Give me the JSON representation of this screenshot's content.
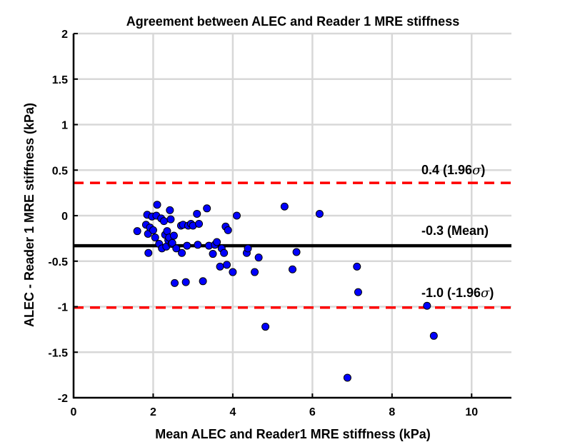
{
  "chart_data": {
    "type": "scatter",
    "title": "Agreement between ALEC and Reader 1 MRE stiffness",
    "xlabel": "Mean ALEC and Reader1 MRE stiffness (kPa)",
    "ylabel": "ALEC - Reader 1 MRE stiffness (kPa)",
    "xlim": [
      0,
      11
    ],
    "ylim": [
      -2,
      2
    ],
    "grid": true,
    "x_ticks": [
      "0",
      "2",
      "4",
      "6",
      "8",
      "10"
    ],
    "y_ticks": [
      "2",
      "1.5",
      "1",
      "0.5",
      "0",
      "-0.5",
      "-1",
      "-1.5",
      "-2"
    ],
    "x_tick_values": [
      0,
      2,
      4,
      6,
      8,
      10
    ],
    "y_tick_values": [
      2,
      1.5,
      1,
      0.5,
      0,
      -0.5,
      -1,
      -1.5,
      -2
    ],
    "point_color": "#0000ff",
    "mean_line": {
      "value": -0.33,
      "color": "#000000",
      "label": "-0.3 (Mean)"
    },
    "upper_limit": {
      "value": 0.36,
      "color": "#ff0000",
      "label_prefix": "0.4 (1.96",
      "label_sigma": "σ",
      "label_suffix": ")"
    },
    "lower_limit": {
      "value": -1.01,
      "color": "#ff0000",
      "label_prefix": "-1.0 (-1.96",
      "label_sigma": "σ",
      "label_suffix": ")"
    },
    "points": [
      {
        "x": 1.6,
        "y": -0.17
      },
      {
        "x": 1.82,
        "y": -0.1
      },
      {
        "x": 1.85,
        "y": 0.01
      },
      {
        "x": 1.87,
        "y": -0.2
      },
      {
        "x": 1.88,
        "y": -0.41
      },
      {
        "x": 1.92,
        "y": -0.13
      },
      {
        "x": 1.97,
        "y": -0.01
      },
      {
        "x": 2.0,
        "y": -0.16
      },
      {
        "x": 2.05,
        "y": -0.24
      },
      {
        "x": 2.08,
        "y": 0.0
      },
      {
        "x": 2.1,
        "y": 0.12
      },
      {
        "x": 2.15,
        "y": -0.31
      },
      {
        "x": 2.2,
        "y": -0.03
      },
      {
        "x": 2.22,
        "y": -0.36
      },
      {
        "x": 2.27,
        "y": -0.06
      },
      {
        "x": 2.3,
        "y": -0.21
      },
      {
        "x": 2.33,
        "y": -0.34
      },
      {
        "x": 2.35,
        "y": -0.17
      },
      {
        "x": 2.38,
        "y": -0.27
      },
      {
        "x": 2.4,
        "y": -0.24
      },
      {
        "x": 2.42,
        "y": 0.06
      },
      {
        "x": 2.44,
        "y": -0.04
      },
      {
        "x": 2.46,
        "y": -0.31
      },
      {
        "x": 2.48,
        "y": -0.3
      },
      {
        "x": 2.52,
        "y": -0.22
      },
      {
        "x": 2.54,
        "y": -0.74
      },
      {
        "x": 2.58,
        "y": -0.36
      },
      {
        "x": 2.7,
        "y": -0.11
      },
      {
        "x": 2.72,
        "y": -0.41
      },
      {
        "x": 2.75,
        "y": -0.1
      },
      {
        "x": 2.82,
        "y": -0.73
      },
      {
        "x": 2.85,
        "y": -0.33
      },
      {
        "x": 2.88,
        "y": -0.11
      },
      {
        "x": 2.95,
        "y": -0.09
      },
      {
        "x": 3.0,
        "y": -0.11
      },
      {
        "x": 3.1,
        "y": 0.02
      },
      {
        "x": 3.12,
        "y": -0.32
      },
      {
        "x": 3.15,
        "y": -0.09
      },
      {
        "x": 3.25,
        "y": -0.72
      },
      {
        "x": 3.35,
        "y": 0.08
      },
      {
        "x": 3.4,
        "y": -0.33
      },
      {
        "x": 3.5,
        "y": -0.42
      },
      {
        "x": 3.55,
        "y": -0.32
      },
      {
        "x": 3.6,
        "y": -0.29
      },
      {
        "x": 3.68,
        "y": -0.56
      },
      {
        "x": 3.72,
        "y": -0.36
      },
      {
        "x": 3.78,
        "y": -0.41
      },
      {
        "x": 3.82,
        "y": -0.12
      },
      {
        "x": 3.85,
        "y": -0.54
      },
      {
        "x": 3.88,
        "y": -0.16
      },
      {
        "x": 4.0,
        "y": -0.62
      },
      {
        "x": 4.1,
        "y": 0.0
      },
      {
        "x": 4.35,
        "y": -0.41
      },
      {
        "x": 4.38,
        "y": -0.36
      },
      {
        "x": 4.55,
        "y": -0.62
      },
      {
        "x": 4.65,
        "y": -0.46
      },
      {
        "x": 4.82,
        "y": -1.22
      },
      {
        "x": 5.3,
        "y": 0.1
      },
      {
        "x": 5.5,
        "y": -0.59
      },
      {
        "x": 5.6,
        "y": -0.4
      },
      {
        "x": 6.18,
        "y": 0.02
      },
      {
        "x": 6.88,
        "y": -1.78
      },
      {
        "x": 7.12,
        "y": -0.56
      },
      {
        "x": 7.15,
        "y": -0.84
      },
      {
        "x": 8.88,
        "y": -0.99
      },
      {
        "x": 9.05,
        "y": -1.32
      }
    ]
  }
}
